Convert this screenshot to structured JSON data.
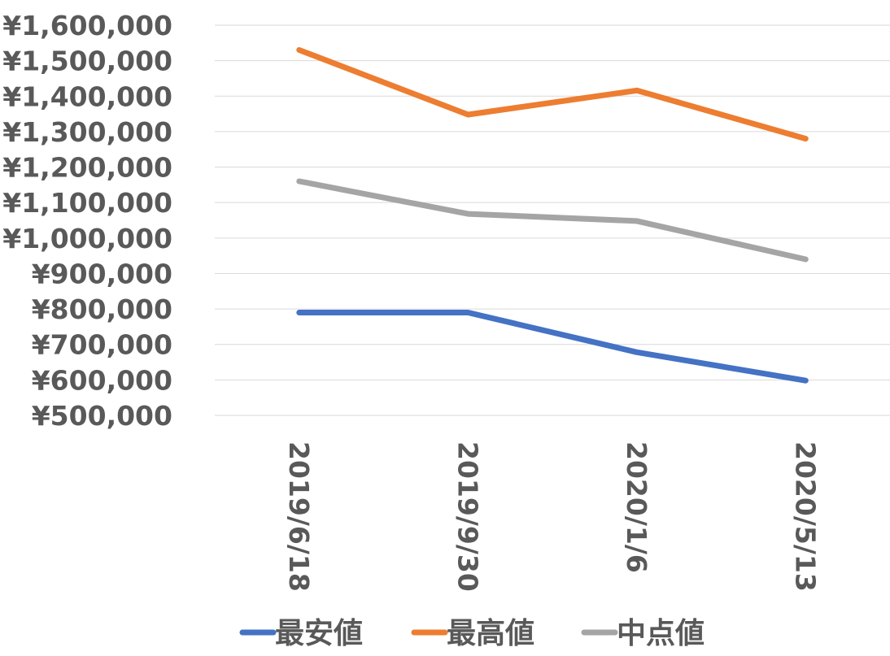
{
  "chart_data": {
    "type": "line",
    "categories": [
      "2019/6/18",
      "2019/9/30",
      "2020/1/6",
      "2020/5/13"
    ],
    "series": [
      {
        "name": "最安値",
        "color": "#4472c4",
        "values": [
          790000,
          790000,
          678000,
          598000
        ]
      },
      {
        "name": "最高値",
        "color": "#ed7d31",
        "values": [
          1530000,
          1348000,
          1416000,
          1280000
        ]
      },
      {
        "name": "中点値",
        "color": "#a5a5a5",
        "values": [
          1160000,
          1068000,
          1048000,
          940000
        ]
      }
    ],
    "y_ticks": [
      "¥500,000",
      "¥600,000",
      "¥700,000",
      "¥800,000",
      "¥900,000",
      "¥1,000,000",
      "¥1,100,000",
      "¥1,200,000",
      "¥1,300,000",
      "¥1,400,000",
      "¥1,500,000",
      "¥1,600,000"
    ],
    "ylim": [
      500000,
      1600000
    ],
    "grid": true,
    "legend": "bottom",
    "title": "",
    "xlabel": "",
    "ylabel": ""
  }
}
